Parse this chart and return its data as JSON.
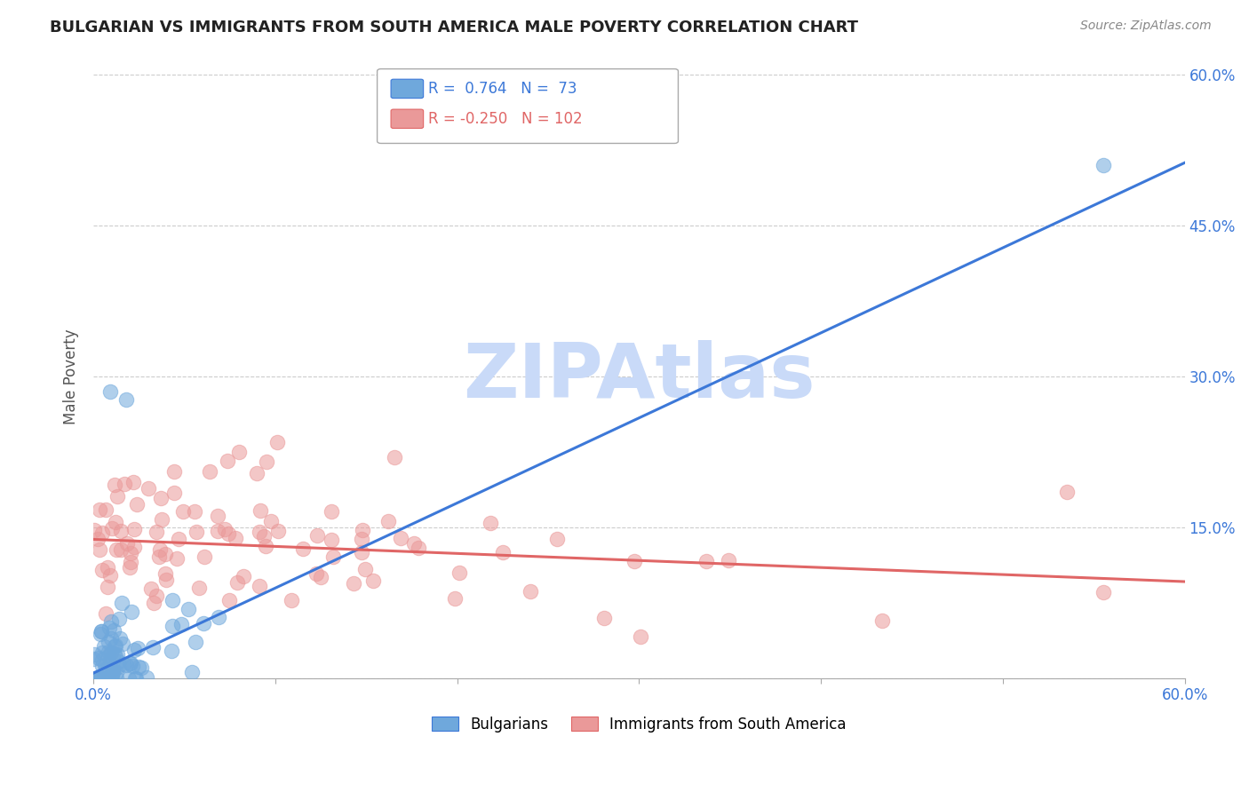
{
  "title": "BULGARIAN VS IMMIGRANTS FROM SOUTH AMERICA MALE POVERTY CORRELATION CHART",
  "source": "Source: ZipAtlas.com",
  "ylabel": "Male Poverty",
  "xlim": [
    0.0,
    0.6
  ],
  "ylim": [
    0.0,
    0.6
  ],
  "xticks": [
    0.0,
    0.1,
    0.2,
    0.3,
    0.4,
    0.5,
    0.6
  ],
  "xtick_labels_show": [
    "0.0%",
    "",
    "",
    "",
    "",
    "",
    "60.0%"
  ],
  "yticks_right": [
    0.0,
    0.15,
    0.3,
    0.45,
    0.6
  ],
  "ytick_labels_right": [
    "",
    "15.0%",
    "30.0%",
    "45.0%",
    "60.0%"
  ],
  "blue_R": 0.764,
  "blue_N": 73,
  "pink_R": -0.25,
  "pink_N": 102,
  "blue_color": "#6fa8dc",
  "pink_color": "#ea9999",
  "blue_line_color": "#3c78d8",
  "pink_line_color": "#e06666",
  "watermark": "ZIPAtlas",
  "watermark_color": "#c9daf8",
  "legend_labels": [
    "Bulgarians",
    "Immigrants from South America"
  ],
  "title_fontsize": 13,
  "tick_label_color": "#3c78d8",
  "background_color": "#ffffff",
  "blue_line_x0": 0.0,
  "blue_line_y0": 0.005,
  "blue_line_x1": 0.585,
  "blue_line_y1": 0.5,
  "pink_line_x0": 0.0,
  "pink_line_y0": 0.138,
  "pink_line_x1": 0.6,
  "pink_line_y1": 0.096
}
